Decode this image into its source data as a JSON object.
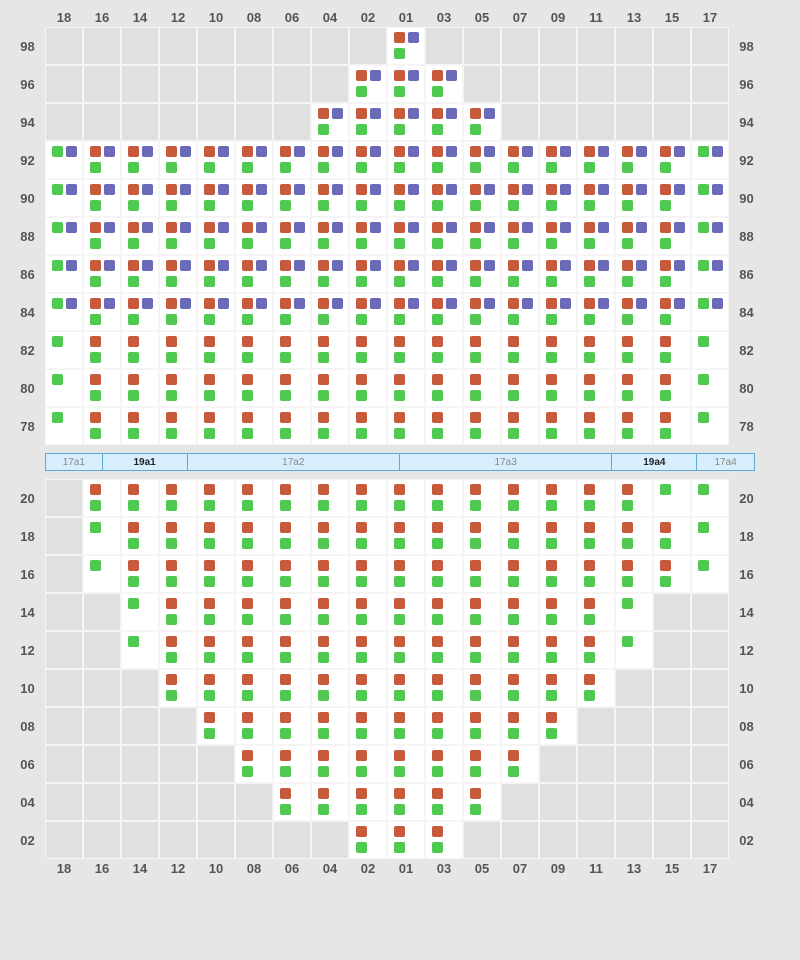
{
  "colors": {
    "orange": "#c85a3c",
    "purple": "#6a6ab8",
    "green": "#4fc94f",
    "grid_bg_inactive": "#e0e0e0",
    "grid_bg_active": "#ffffff",
    "page_bg": "#e6e6e6",
    "sep_border": "#5aa9d6",
    "sep_fill": "#d8eefc"
  },
  "columns": [
    "18",
    "16",
    "14",
    "12",
    "10",
    "08",
    "06",
    "04",
    "02",
    "01",
    "03",
    "05",
    "07",
    "09",
    "11",
    "13",
    "15",
    "17"
  ],
  "upper": {
    "rows": [
      "98",
      "96",
      "94",
      "92",
      "90",
      "88",
      "86",
      "84",
      "82",
      "80",
      "78"
    ],
    "patterns": {
      "OP_G": {
        "tl": "orange",
        "tr": "purple",
        "bl": "green"
      },
      "O_G": {
        "tl": "orange",
        "bl": "green"
      },
      "G_P": {
        "tl": "green",
        "tr": "purple"
      },
      "G": {
        "tl": "green"
      }
    },
    "active_ranges": {
      "98": [
        9,
        9
      ],
      "96": [
        8,
        10
      ],
      "94": [
        7,
        11
      ],
      "92": [
        0,
        17
      ],
      "90": [
        0,
        17
      ],
      "88": [
        0,
        17
      ],
      "86": [
        0,
        17
      ],
      "84": [
        0,
        17
      ],
      "82": [
        0,
        17
      ],
      "80": [
        0,
        17
      ],
      "78": [
        0,
        17
      ]
    },
    "cells": {
      "98": {
        "9": "OP_G"
      },
      "96": {
        "8": "OP_G",
        "9": "OP_G",
        "10": "OP_G"
      },
      "94": {
        "7": "OP_G",
        "8": "OP_G",
        "9": "OP_G",
        "10": "OP_G",
        "11": "OP_G"
      },
      "92": {
        "0": "G_P",
        "1": "OP_G",
        "2": "OP_G",
        "3": "OP_G",
        "4": "OP_G",
        "5": "OP_G",
        "6": "OP_G",
        "7": "OP_G",
        "8": "OP_G",
        "9": "OP_G",
        "10": "OP_G",
        "11": "OP_G",
        "12": "OP_G",
        "13": "OP_G",
        "14": "OP_G",
        "15": "OP_G",
        "16": "OP_G",
        "17": "G_P"
      },
      "90": {
        "0": "G_P",
        "1": "OP_G",
        "2": "OP_G",
        "3": "OP_G",
        "4": "OP_G",
        "5": "OP_G",
        "6": "OP_G",
        "7": "OP_G",
        "8": "OP_G",
        "9": "OP_G",
        "10": "OP_G",
        "11": "OP_G",
        "12": "OP_G",
        "13": "OP_G",
        "14": "OP_G",
        "15": "OP_G",
        "16": "OP_G",
        "17": "G_P"
      },
      "88": {
        "0": "G_P",
        "1": "OP_G",
        "2": "OP_G",
        "3": "OP_G",
        "4": "OP_G",
        "5": "OP_G",
        "6": "OP_G",
        "7": "OP_G",
        "8": "OP_G",
        "9": "OP_G",
        "10": "OP_G",
        "11": "OP_G",
        "12": "OP_G",
        "13": "OP_G",
        "14": "OP_G",
        "15": "OP_G",
        "16": "OP_G",
        "17": "G_P"
      },
      "86": {
        "0": "G_P",
        "1": "OP_G",
        "2": "OP_G",
        "3": "OP_G",
        "4": "OP_G",
        "5": "OP_G",
        "6": "OP_G",
        "7": "OP_G",
        "8": "OP_G",
        "9": "OP_G",
        "10": "OP_G",
        "11": "OP_G",
        "12": "OP_G",
        "13": "OP_G",
        "14": "OP_G",
        "15": "OP_G",
        "16": "OP_G",
        "17": "G_P"
      },
      "84": {
        "0": "G_P",
        "1": "OP_G",
        "2": "OP_G",
        "3": "OP_G",
        "4": "OP_G",
        "5": "OP_G",
        "6": "OP_G",
        "7": "OP_G",
        "8": "OP_G",
        "9": "OP_G",
        "10": "OP_G",
        "11": "OP_G",
        "12": "OP_G",
        "13": "OP_G",
        "14": "OP_G",
        "15": "OP_G",
        "16": "OP_G",
        "17": "G_P"
      },
      "82": {
        "0": "G",
        "1": "O_G",
        "2": "O_G",
        "3": "O_G",
        "4": "O_G",
        "5": "O_G",
        "6": "O_G",
        "7": "O_G",
        "8": "O_G",
        "9": "O_G",
        "10": "O_G",
        "11": "O_G",
        "12": "O_G",
        "13": "O_G",
        "14": "O_G",
        "15": "O_G",
        "16": "O_G",
        "17": "G"
      },
      "80": {
        "0": "G",
        "1": "O_G",
        "2": "O_G",
        "3": "O_G",
        "4": "O_G",
        "5": "O_G",
        "6": "O_G",
        "7": "O_G",
        "8": "O_G",
        "9": "O_G",
        "10": "O_G",
        "11": "O_G",
        "12": "O_G",
        "13": "O_G",
        "14": "O_G",
        "15": "O_G",
        "16": "O_G",
        "17": "G"
      },
      "78": {
        "0": "G",
        "1": "O_G",
        "2": "O_G",
        "3": "O_G",
        "4": "O_G",
        "5": "O_G",
        "6": "O_G",
        "7": "O_G",
        "8": "O_G",
        "9": "O_G",
        "10": "O_G",
        "11": "O_G",
        "12": "O_G",
        "13": "O_G",
        "14": "O_G",
        "15": "O_G",
        "16": "O_G",
        "17": "G"
      }
    }
  },
  "lower": {
    "rows": [
      "20",
      "18",
      "16",
      "14",
      "12",
      "10",
      "08",
      "06",
      "04",
      "02"
    ],
    "active_ranges": {
      "20": [
        1,
        17
      ],
      "18": [
        1,
        17
      ],
      "16": [
        1,
        17
      ],
      "14": [
        2,
        15
      ],
      "12": [
        2,
        15
      ],
      "10": [
        3,
        14
      ],
      "08": [
        4,
        13
      ],
      "06": [
        5,
        12
      ],
      "04": [
        6,
        11
      ],
      "02": [
        8,
        10
      ]
    },
    "partial_cells": {
      "20": {
        "16": "G",
        "17": "G"
      },
      "18": {
        "1": "G",
        "17": "G"
      },
      "16": {
        "1": "G",
        "17": "G"
      },
      "14": {
        "2": "G",
        "15": "G"
      },
      "12": {
        "2": "G",
        "15": "G"
      }
    }
  },
  "separator": {
    "segments": [
      {
        "label": "17a1",
        "width": 8,
        "active": false
      },
      {
        "label": "19a1",
        "width": 12,
        "active": true
      },
      {
        "label": "17a2",
        "width": 30,
        "active": false
      },
      {
        "label": "17a3",
        "width": 30,
        "active": false
      },
      {
        "label": "19a4",
        "width": 12,
        "active": true
      },
      {
        "label": "17a4",
        "width": 8,
        "active": false
      }
    ]
  }
}
